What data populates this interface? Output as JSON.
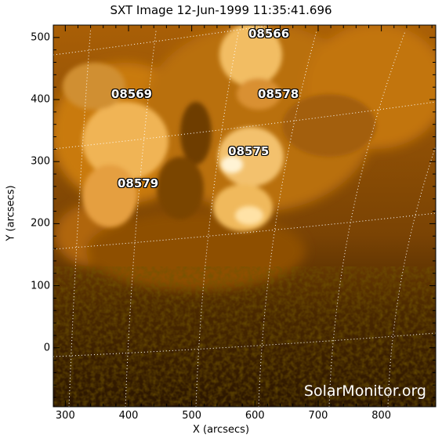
{
  "title": "SXT Image 12-Jun-1999 11:35:41.696",
  "x_axis_label": "X (arcsecs)",
  "y_axis_label": "Y (arcsecs)",
  "watermark": "SolarMonitor.org",
  "x_ticks": [
    "300",
    "400",
    "500",
    "600",
    "700",
    "800"
  ],
  "y_ticks": [
    "500",
    "400",
    "300",
    "200",
    "100",
    "0"
  ],
  "x_tick_values": [
    300,
    400,
    500,
    600,
    700,
    800
  ],
  "y_tick_values": [
    500,
    400,
    300,
    200,
    100,
    0
  ],
  "x_range": [
    281,
    886
  ],
  "y_range": [
    -95,
    520
  ],
  "active_regions": [
    {
      "number": "08566",
      "x": 622,
      "y": 505
    },
    {
      "number": "08569",
      "x": 405,
      "y": 408
    },
    {
      "number": "08578",
      "x": 637,
      "y": 408
    },
    {
      "number": "08575",
      "x": 590,
      "y": 316
    },
    {
      "number": "08579",
      "x": 415,
      "y": 264
    }
  ],
  "colors": {
    "sun_dark": "#2a1600",
    "sun_mid": "#b56a08",
    "sun_bright": "#ffe2a6",
    "grid": "#ffffff"
  }
}
